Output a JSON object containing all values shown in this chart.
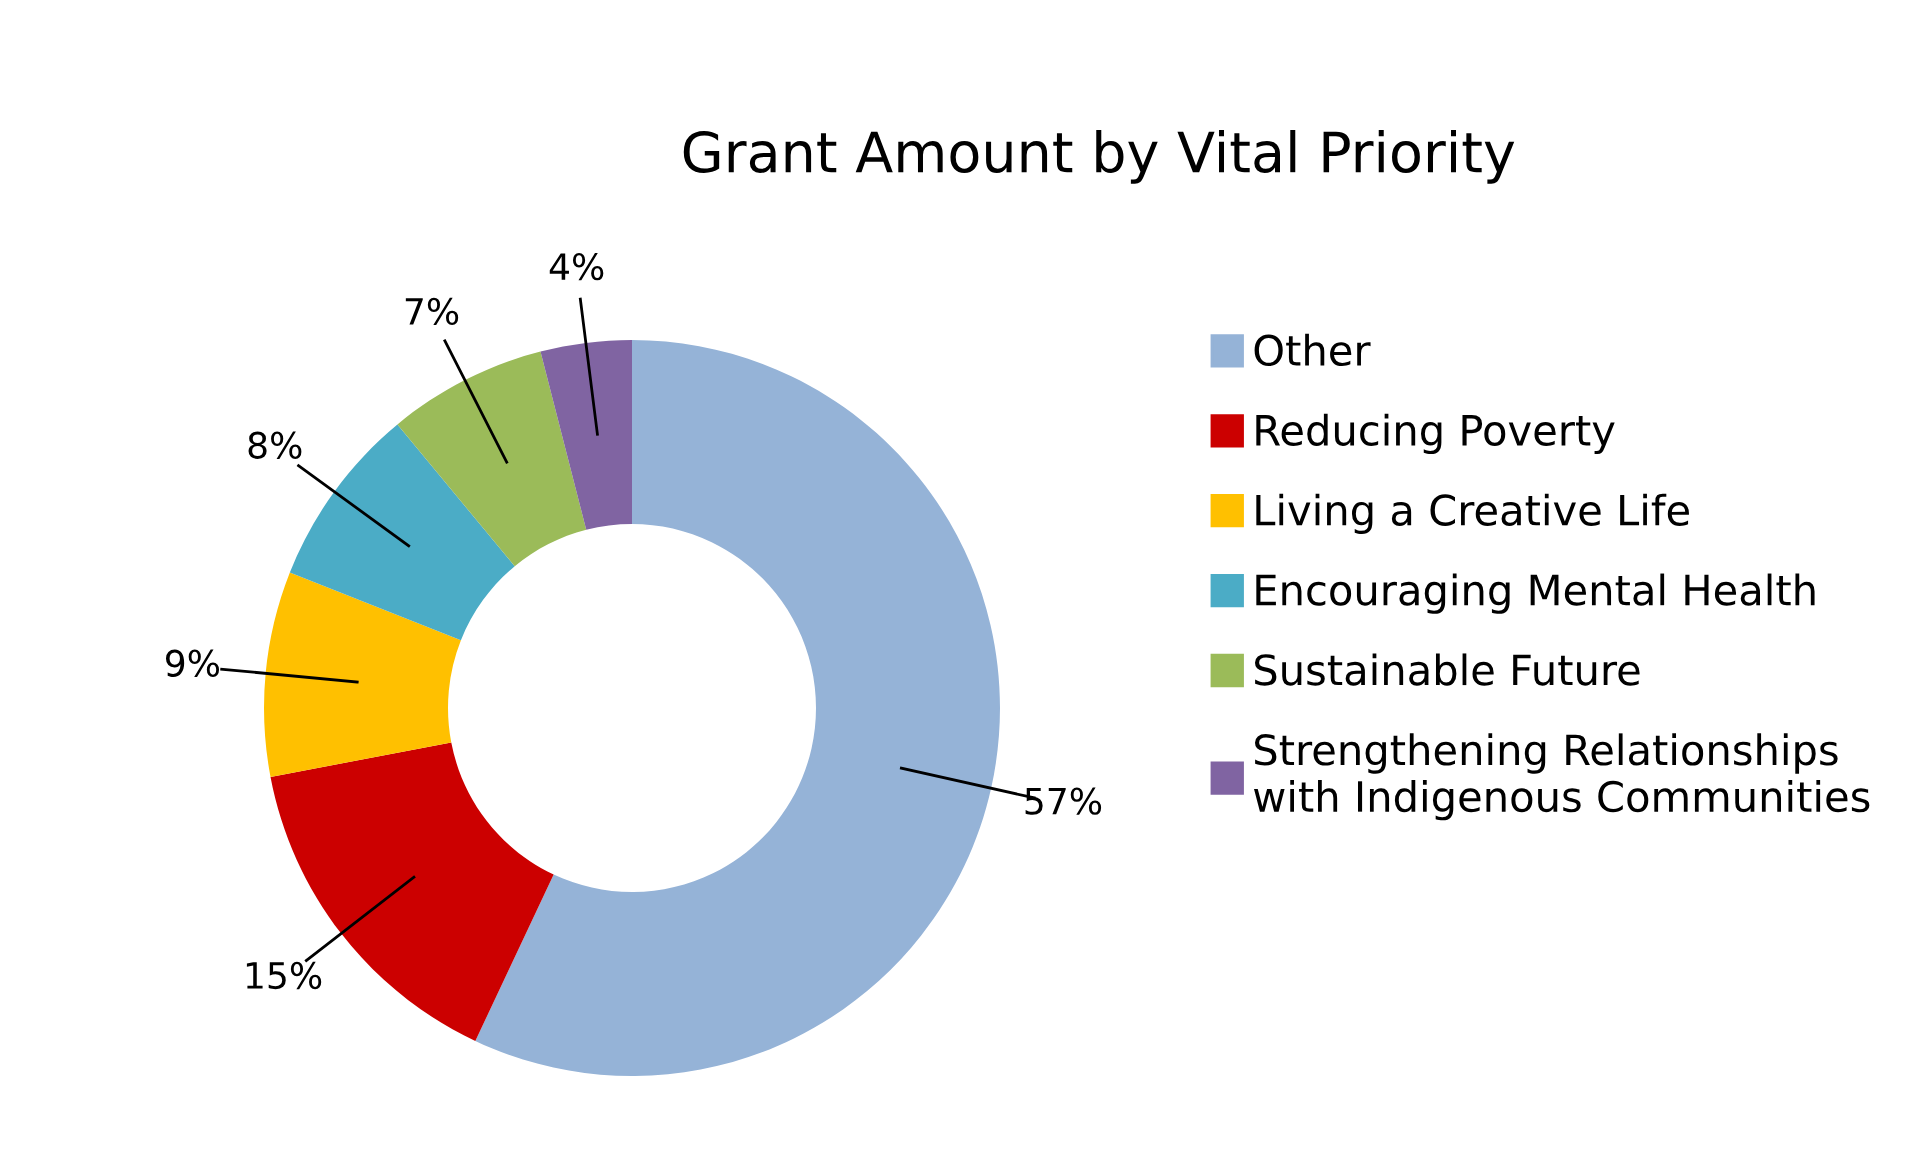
{
  "chart_data": {
    "type": "donut",
    "title": "Grant Amount by Vital Priority",
    "categories": [
      "Other",
      "Reducing Poverty",
      "Living a Creative Life",
      "Encouraging Mental Health",
      "Sustainable Future",
      "Strengthening Relationships with Indigenous Communities"
    ],
    "values": [
      57,
      15,
      9,
      8,
      7,
      4
    ],
    "colors": [
      "#95b3d7",
      "#cc0000",
      "#ffc000",
      "#4bacc6",
      "#9bbb59",
      "#8064a2"
    ],
    "value_labels": [
      "57%",
      "15%",
      "9%",
      "8%",
      "7%",
      "4%"
    ],
    "legend": "right"
  }
}
